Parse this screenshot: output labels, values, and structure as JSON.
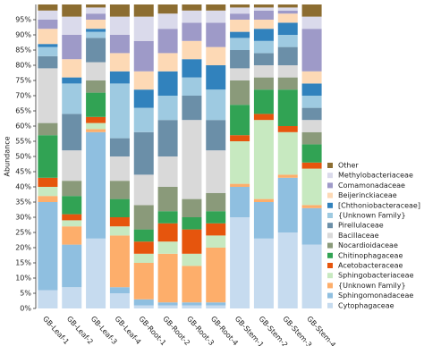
{
  "chart_data": {
    "type": "stacked_bar",
    "y_label": "Abundance",
    "categories": [
      "GB-Leaf-1",
      "GB-Leaf-2",
      "GB-Leaf-3",
      "GB-Leaf-4",
      "GB-Root-1",
      "GB-Root-2",
      "GB-Root-3",
      "GB-Root-4",
      "GB-Stem-1",
      "GB-Stem-2",
      "GB-Stem-3",
      "GB-Stem-4"
    ],
    "ylim": [
      0,
      100
    ],
    "yticks": [
      {
        "value": 0,
        "label": "0%"
      },
      {
        "value": 5,
        "label": "5%"
      },
      {
        "value": 10,
        "label": "10%"
      },
      {
        "value": 15,
        "label": "15%"
      },
      {
        "value": 20,
        "label": "20%"
      },
      {
        "value": 25,
        "label": "25%"
      },
      {
        "value": 30,
        "label": "30%"
      },
      {
        "value": 35,
        "label": "35%"
      },
      {
        "value": 40,
        "label": "40%"
      },
      {
        "value": 45,
        "label": "45%"
      },
      {
        "value": 50,
        "label": "50%"
      },
      {
        "value": 55,
        "label": "55%"
      },
      {
        "value": 60,
        "label": "60%"
      },
      {
        "value": 65,
        "label": "65%"
      },
      {
        "value": 70,
        "label": "70%"
      },
      {
        "value": 75,
        "label": "75%"
      },
      {
        "value": 80,
        "label": "80%"
      },
      {
        "value": 85,
        "label": "85%"
      },
      {
        "value": 90,
        "label": "90%"
      },
      {
        "value": 95,
        "label": "95%"
      }
    ],
    "series": [
      {
        "name": "Cytophagaceae",
        "color": "#c6dbef",
        "values": [
          6,
          7,
          23,
          5,
          1,
          1,
          1,
          1,
          30,
          23,
          25,
          21
        ]
      },
      {
        "name": "Sphingomonadaceae",
        "color": "#8fbfe0",
        "values": [
          29,
          14,
          35,
          2,
          2,
          1,
          1,
          1,
          10,
          12,
          18,
          12
        ]
      },
      {
        "name": "{Unknown Family}",
        "color": "#fdae6b",
        "values": [
          2,
          6,
          1,
          17,
          12,
          16,
          12,
          18,
          1,
          1,
          1,
          1
        ]
      },
      {
        "name": "Sphingobacteriaceae",
        "color": "#c7e9c0",
        "values": [
          3,
          2,
          2,
          3,
          3,
          4,
          4,
          4,
          14,
          26,
          14,
          12
        ]
      },
      {
        "name": "Acetobacteraceae",
        "color": "#e6550d",
        "values": [
          3,
          2,
          2,
          3,
          4,
          6,
          8,
          4,
          2,
          2,
          2,
          2
        ]
      },
      {
        "name": "Chitinophagaceae",
        "color": "#31a354",
        "values": [
          14,
          6,
          8,
          6,
          4,
          4,
          4,
          4,
          10,
          8,
          12,
          6
        ]
      },
      {
        "name": "Nocardioidaceae",
        "color": "#8a9a7a",
        "values": [
          4,
          5,
          4,
          6,
          8,
          8,
          6,
          6,
          8,
          4,
          4,
          4
        ]
      },
      {
        "name": "Bacillaceae",
        "color": "#d9d9d9",
        "values": [
          18,
          10,
          6,
          8,
          10,
          10,
          26,
          14,
          4,
          4,
          4,
          4
        ]
      },
      {
        "name": "Pirellulaceae",
        "color": "#6b8fa8",
        "values": [
          4,
          12,
          8,
          6,
          14,
          12,
          8,
          10,
          6,
          4,
          6,
          4
        ]
      },
      {
        "name": "{Unknown Family}",
        "color": "#9ecae1",
        "values": [
          3,
          10,
          2,
          18,
          8,
          8,
          6,
          10,
          4,
          4,
          4,
          4
        ]
      },
      {
        "name": "[Chthoniobacteraceae]",
        "color": "#3182bd",
        "values": [
          1,
          2,
          1,
          4,
          6,
          8,
          6,
          8,
          2,
          4,
          4,
          4
        ]
      },
      {
        "name": "Beijerinckiaceae",
        "color": "#fdd9b5",
        "values": [
          5,
          6,
          3,
          6,
          6,
          6,
          6,
          6,
          4,
          3,
          3,
          4
        ]
      },
      {
        "name": "Comamonadaceae",
        "color": "#9e9ac8",
        "values": [
          3,
          8,
          2,
          6,
          10,
          8,
          6,
          8,
          2,
          3,
          1,
          14
        ]
      },
      {
        "name": "Methylobacteriaceae",
        "color": "#dadaeb",
        "values": [
          3,
          6,
          2,
          6,
          8,
          5,
          4,
          4,
          2,
          1,
          1,
          4
        ]
      },
      {
        "name": "Other",
        "color": "#8c6d31",
        "values": [
          2,
          4,
          1,
          4,
          4,
          3,
          2,
          2,
          1,
          1,
          1,
          4
        ]
      }
    ]
  }
}
